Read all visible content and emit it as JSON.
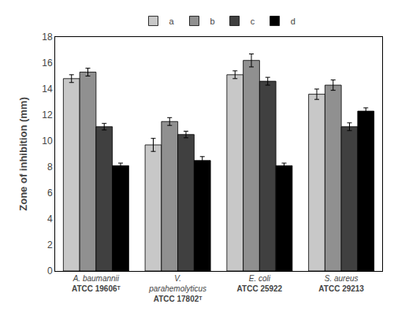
{
  "chart_data": {
    "type": "bar",
    "categories": [
      "A. baumannii\nATCC 19606ᵀ",
      "V.\nparahemolyticus\nATCC 17802ᵀ",
      "E. coli\nATCC 25922",
      "S. aureus\nATCC 29213"
    ],
    "series": [
      {
        "name": "a",
        "color": "#c8c8c8",
        "values": [
          14.8,
          9.7,
          15.1,
          13.6
        ],
        "errors": [
          0.3,
          0.5,
          0.3,
          0.4
        ]
      },
      {
        "name": "b",
        "color": "#909090",
        "values": [
          15.3,
          11.5,
          16.2,
          14.3
        ],
        "errors": [
          0.3,
          0.3,
          0.5,
          0.4
        ]
      },
      {
        "name": "c",
        "color": "#404040",
        "values": [
          11.1,
          10.5,
          14.6,
          11.1
        ],
        "errors": [
          0.25,
          0.25,
          0.3,
          0.3
        ]
      },
      {
        "name": "d",
        "color": "#000000",
        "values": [
          8.1,
          8.5,
          8.1,
          12.3
        ],
        "errors": [
          0.2,
          0.3,
          0.2,
          0.25
        ]
      }
    ],
    "ylabel": "Zone of inhibition (mm)",
    "ylim": [
      0,
      18
    ],
    "yticks": [
      0,
      2,
      4,
      6,
      8,
      10,
      12,
      14,
      16,
      18
    ],
    "grid": false,
    "legend": "top"
  }
}
